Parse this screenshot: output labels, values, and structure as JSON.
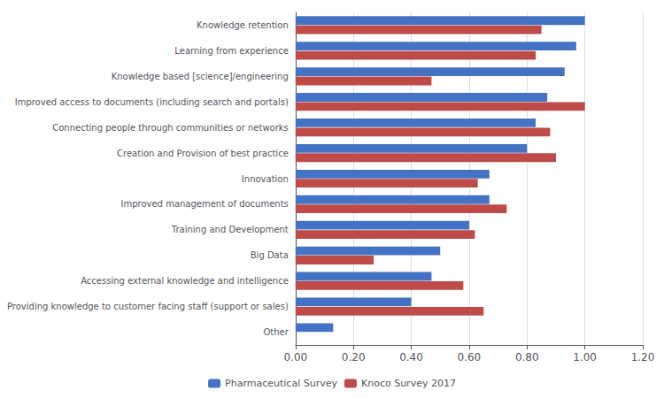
{
  "chart_data": {
    "type": "bar",
    "orientation": "horizontal",
    "categories": [
      "Other",
      "Providing knowledge to customer facing staff (support or sales)",
      "Accessing external knowledge and intelligence",
      "Big Data",
      "Training and Development",
      "Improved management of documents",
      "Innovation",
      "Creation and Provision of best practice",
      "Connecting people through communities or networks",
      "Improved access to documents (including search and portals)",
      "Knowledge based [science]/engineering",
      "Learning from experience",
      "Knowledge retention"
    ],
    "series": [
      {
        "name": "Pharmaceutical Survey",
        "color": "#4472C4",
        "values": [
          0.13,
          0.4,
          0.47,
          0.5,
          0.6,
          0.67,
          0.67,
          0.8,
          0.83,
          0.87,
          0.93,
          0.97,
          1.0
        ]
      },
      {
        "name": "Knoco Survey 2017",
        "color": "#BE4B48",
        "values": [
          0.0,
          0.65,
          0.58,
          0.27,
          0.62,
          0.73,
          0.63,
          0.9,
          0.88,
          1.0,
          0.47,
          0.83,
          0.85
        ]
      }
    ],
    "xlim": [
      0,
      1.2
    ],
    "xticks": [
      {
        "value": 0,
        "label": "0.00"
      },
      {
        "value": 0.2,
        "label": "0.20"
      },
      {
        "value": 0.4,
        "label": "0.40"
      },
      {
        "value": 0.6,
        "label": "0.60"
      },
      {
        "value": 0.8,
        "label": "0.80"
      },
      {
        "value": 1.0,
        "label": "1.00"
      },
      {
        "value": 1.2,
        "label": "1.20"
      }
    ],
    "grid": true,
    "legend": "bottom"
  }
}
